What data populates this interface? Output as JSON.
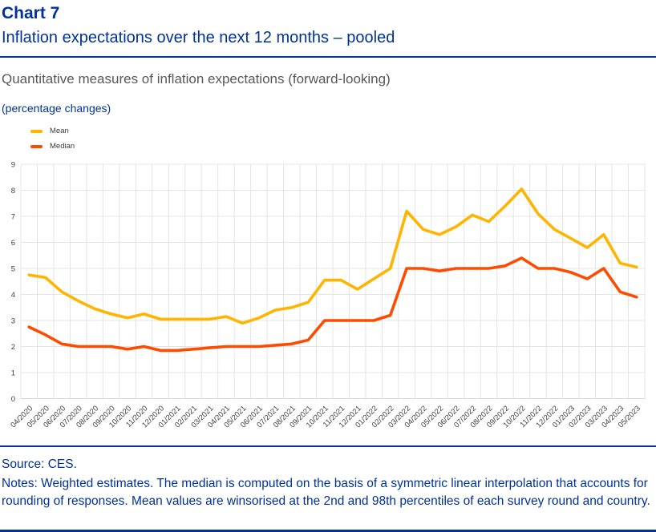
{
  "page": {
    "kicker": "Chart 7",
    "title": "Inflation expectations over the next 12 months – pooled",
    "heading": "Quantitative measures of inflation expectations (forward-looking)",
    "unit": "(percentage changes)",
    "source": "Source: CES.",
    "notes": "Notes: Weighted estimates. The median is computed on the basis of a symmetric linear interpolation that accounts for rounding of responses. Mean values are winsorised at the 2nd and 98th percentiles of each survey round and country."
  },
  "colors": {
    "accent_blue": "#003299",
    "heading_gray": "#58585a",
    "grid": "#e4e4e4",
    "tick_text": "#3f3f3f",
    "mean": "#FFB400",
    "median": "#FF4B00"
  },
  "chart_data": {
    "type": "line",
    "title": "Quantitative measures of inflation expectations (forward-looking)",
    "ylabel": "(percentage changes)",
    "ylim": [
      0,
      9
    ],
    "ytick_step": 1,
    "grid": true,
    "legend_position": "top-left",
    "categories": [
      "04/2020",
      "05/2020",
      "06/2020",
      "07/2020",
      "08/2020",
      "09/2020",
      "10/2020",
      "11/2020",
      "12/2020",
      "01/2021",
      "02/2021",
      "03/2021",
      "04/2021",
      "05/2021",
      "06/2021",
      "07/2021",
      "08/2021",
      "09/2021",
      "10/2021",
      "11/2021",
      "12/2021",
      "01/2022",
      "02/2022",
      "03/2022",
      "04/2022",
      "05/2022",
      "06/2022",
      "07/2022",
      "08/2022",
      "09/2022",
      "10/2022",
      "11/2022",
      "12/2022",
      "01/2023",
      "02/2023",
      "03/2023",
      "04/2023",
      "05/2023"
    ],
    "series": [
      {
        "name": "Mean",
        "color": "#FFB400",
        "values": [
          4.75,
          4.65,
          4.1,
          3.75,
          3.45,
          3.25,
          3.1,
          3.25,
          3.05,
          3.05,
          3.05,
          3.05,
          3.15,
          2.9,
          3.1,
          3.4,
          3.5,
          3.7,
          4.55,
          4.55,
          4.2,
          4.6,
          5.0,
          7.2,
          6.5,
          6.3,
          6.6,
          7.05,
          6.8,
          7.4,
          8.05,
          7.1,
          6.5,
          6.15,
          5.8,
          6.3,
          5.2,
          5.05
        ]
      },
      {
        "name": "Median",
        "color": "#FF4B00",
        "values": [
          2.75,
          2.45,
          2.1,
          2.0,
          2.0,
          2.0,
          1.9,
          2.0,
          1.85,
          1.85,
          1.9,
          1.95,
          2.0,
          2.0,
          2.0,
          2.05,
          2.1,
          2.25,
          3.0,
          3.0,
          3.0,
          3.0,
          3.2,
          5.0,
          5.0,
          4.9,
          5.0,
          5.0,
          5.0,
          5.1,
          5.4,
          5.0,
          5.0,
          4.85,
          4.6,
          5.0,
          4.1,
          3.9
        ]
      }
    ]
  }
}
